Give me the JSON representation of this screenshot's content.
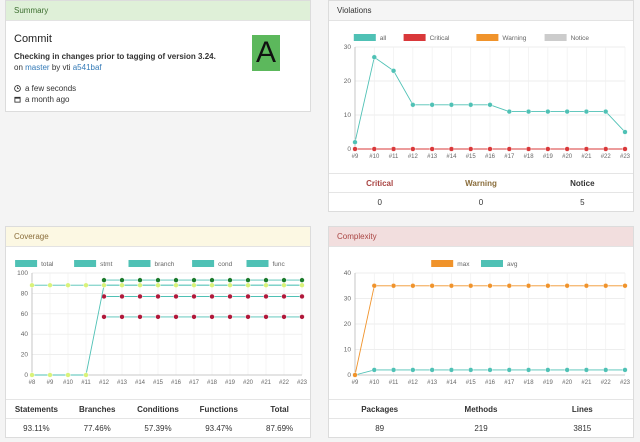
{
  "summary": {
    "title": "Summary",
    "commit_heading": "Commit",
    "message": "Checking in changes prior to tagging of version 3.24.",
    "on_text": "on",
    "branch": "master",
    "by_text": "by vti",
    "hash": "a541baf",
    "grade": "A",
    "time_ago": "a few seconds",
    "date_ago": "a month ago",
    "grade_color": "#5cb85c"
  },
  "violations": {
    "title": "Violations",
    "stats_headers": [
      "Critical",
      "Warning",
      "Notice"
    ],
    "stats_values": [
      "0",
      "0",
      "5"
    ],
    "chart_data": {
      "type": "line",
      "x": [
        "#9",
        "#10",
        "#11",
        "#12",
        "#13",
        "#14",
        "#15",
        "#16",
        "#17",
        "#18",
        "#19",
        "#20",
        "#21",
        "#22",
        "#23"
      ],
      "ylim": [
        0,
        30
      ],
      "yticks": [
        0,
        10,
        20,
        30
      ],
      "legend": "top",
      "series": [
        {
          "name": "all",
          "color": "#4fc1b5",
          "values": [
            2,
            27,
            23,
            13,
            13,
            13,
            13,
            13,
            11,
            11,
            11,
            11,
            11,
            11,
            5
          ]
        },
        {
          "name": "Critical",
          "color": "#d9383a",
          "values": [
            0,
            0,
            0,
            0,
            0,
            0,
            0,
            0,
            0,
            0,
            0,
            0,
            0,
            0,
            0
          ]
        },
        {
          "name": "Warning",
          "color": "#f0932b",
          "values": [
            0,
            0,
            0,
            0,
            0,
            0,
            0,
            0,
            0,
            0,
            0,
            0,
            0,
            0,
            0
          ]
        },
        {
          "name": "Notice",
          "color": "#cccccc",
          "values": [
            null,
            null,
            null,
            null,
            null,
            null,
            null,
            null,
            null,
            null,
            null,
            null,
            null,
            null,
            null
          ]
        }
      ]
    }
  },
  "coverage": {
    "title": "Coverage",
    "stats_headers": [
      "Statements",
      "Branches",
      "Conditions",
      "Functions",
      "Total"
    ],
    "stats_values": [
      "93.11%",
      "77.46%",
      "57.39%",
      "93.47%",
      "87.69%"
    ],
    "chart_data": {
      "type": "line",
      "x": [
        "#8",
        "#9",
        "#10",
        "#11",
        "#12",
        "#13",
        "#14",
        "#15",
        "#16",
        "#17",
        "#18",
        "#19",
        "#20",
        "#21",
        "#22",
        "#23"
      ],
      "ylim": [
        0,
        100
      ],
      "yticks": [
        0,
        20,
        40,
        60,
        80,
        100
      ],
      "legend": "top",
      "series": [
        {
          "name": "total",
          "color": "#4fc1b5",
          "values": [
            0,
            0,
            0,
            0,
            88,
            88,
            88,
            88,
            88,
            88,
            88,
            88,
            88,
            88,
            88,
            88
          ]
        },
        {
          "name": "stmt",
          "color": "#4fc1b5",
          "values": [
            null,
            null,
            null,
            null,
            93,
            93,
            93,
            93,
            93,
            93,
            93,
            93,
            93,
            93,
            93,
            93
          ]
        },
        {
          "name": "branch",
          "color": "#4fc1b5",
          "values": [
            null,
            null,
            null,
            null,
            77,
            77,
            77,
            77,
            77,
            77,
            77,
            77,
            77,
            77,
            77,
            77
          ]
        },
        {
          "name": "cond",
          "color": "#4fc1b5",
          "values": [
            null,
            null,
            null,
            null,
            57,
            57,
            57,
            57,
            57,
            57,
            57,
            57,
            57,
            57,
            57,
            57
          ]
        },
        {
          "name": "func",
          "color": "#4fc1b5",
          "values": [
            88,
            88,
            88,
            88,
            88,
            88,
            88,
            88,
            88,
            88,
            88,
            88,
            88,
            88,
            88,
            88
          ]
        }
      ],
      "point_colors": {
        "total": "#d9f27a",
        "stmt": "#1b7a2a",
        "branch": "#b0183a",
        "cond": "#b0183a",
        "func": "#d9f27a"
      }
    }
  },
  "complexity": {
    "title": "Complexity",
    "stats_headers": [
      "Packages",
      "Methods",
      "Lines"
    ],
    "stats_values": [
      "89",
      "219",
      "3815"
    ],
    "chart_data": {
      "type": "line",
      "x": [
        "#9",
        "#10",
        "#11",
        "#12",
        "#13",
        "#14",
        "#15",
        "#16",
        "#17",
        "#18",
        "#19",
        "#20",
        "#21",
        "#22",
        "#23"
      ],
      "ylim": [
        0,
        40
      ],
      "yticks": [
        0,
        10,
        20,
        30,
        40
      ],
      "legend": "top",
      "series": [
        {
          "name": "max",
          "color": "#f0932b",
          "values": [
            0,
            35,
            35,
            35,
            35,
            35,
            35,
            35,
            35,
            35,
            35,
            35,
            35,
            35,
            35
          ]
        },
        {
          "name": "avg",
          "color": "#4fc1b5",
          "values": [
            0,
            2,
            2,
            2,
            2,
            2,
            2,
            2,
            2,
            2,
            2,
            2,
            2,
            2,
            2
          ]
        }
      ]
    }
  }
}
